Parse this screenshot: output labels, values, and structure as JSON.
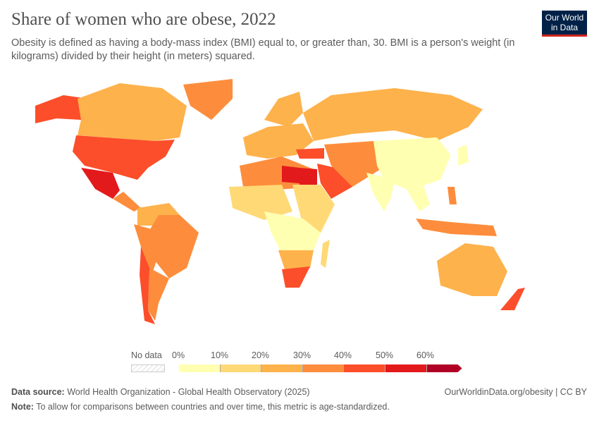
{
  "header": {
    "title": "Share of women who are obese, 2022",
    "subtitle": "Obesity is defined as having a body-mass index (BMI) equal to, or greater than, 30. BMI is a person's weight (in kilograms) divided by their height (in meters) squared.",
    "logo": "Our World in Data"
  },
  "legend": {
    "no_data_label": "No data",
    "ticks": [
      "0%",
      "10%",
      "20%",
      "30%",
      "40%",
      "50%",
      "60%"
    ],
    "bins": [
      {
        "from": 0,
        "to": 10,
        "color": "#ffffb2"
      },
      {
        "from": 10,
        "to": 20,
        "color": "#fed976"
      },
      {
        "from": 20,
        "to": 30,
        "color": "#feb24c"
      },
      {
        "from": 30,
        "to": 40,
        "color": "#fd8d3c"
      },
      {
        "from": 40,
        "to": 50,
        "color": "#fc4e2a"
      },
      {
        "from": 50,
        "to": 60,
        "color": "#e31a1c"
      },
      {
        "from": 60,
        "to": null,
        "color": "#b10026"
      }
    ]
  },
  "footer": {
    "source_label": "Data source:",
    "source": "World Health Organization - Global Health Observatory (2025)",
    "url": "OurWorldinData.org/obesity | CC BY",
    "note_label": "Note:",
    "note": "To allow for comparisons between countries and over time, this metric is age-standardized."
  }
}
